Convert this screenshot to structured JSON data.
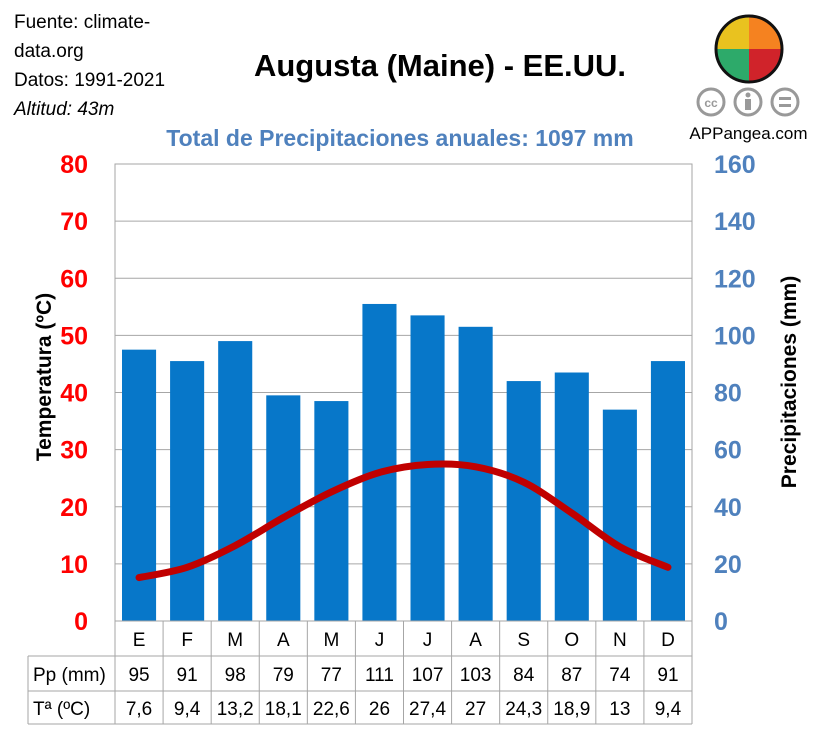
{
  "source": {
    "line1": "Fuente: climate-",
    "line2": "data.org",
    "years": "Datos: 1991-2021",
    "altitude": "Altitud: 43m"
  },
  "logo": {
    "site": "APPangea.com",
    "license_icons": [
      "cc-icon",
      "by-icon",
      "nd-icon"
    ]
  },
  "chart_data": {
    "type": "bar+line",
    "title": "Augusta (Maine) - EE.UU.",
    "subtitle": "Total de Precipitaciones anuales: 1097 mm",
    "categories": [
      "E",
      "F",
      "M",
      "A",
      "M",
      "J",
      "J",
      "A",
      "S",
      "O",
      "N",
      "D"
    ],
    "series": [
      {
        "name": "Pp (mm)",
        "type": "bar",
        "axis": "right",
        "color": "#0777C9",
        "values": [
          95,
          91,
          98,
          79,
          77,
          111,
          107,
          103,
          84,
          87,
          74,
          91
        ]
      },
      {
        "name": "Tª (ºC)",
        "type": "line",
        "axis": "left",
        "color": "#C00000",
        "values": [
          7.6,
          9.4,
          13.2,
          18.1,
          22.6,
          26,
          27.4,
          27,
          24.3,
          18.9,
          13,
          9.4
        ]
      }
    ],
    "table_labels": [
      "Pp (mm)",
      "Tª (ºC)"
    ],
    "table_values": {
      "pp": [
        "95",
        "91",
        "98",
        "79",
        "77",
        "111",
        "107",
        "103",
        "84",
        "87",
        "74",
        "91"
      ],
      "t": [
        "7,6",
        "9,4",
        "13,2",
        "18,1",
        "22,6",
        "26",
        "27,4",
        "27",
        "24,3",
        "18,9",
        "13",
        "9,4"
      ]
    },
    "ylabel_left": "Temperatura (ºC)",
    "ylabel_right": "Precipitaciones (mm)",
    "ylim_left": [
      0,
      80
    ],
    "ylim_right": [
      0,
      160
    ],
    "yticks_left": [
      "0",
      "10",
      "20",
      "30",
      "40",
      "50",
      "60",
      "70",
      "80"
    ],
    "yticks_right": [
      "0",
      "20",
      "40",
      "60",
      "80",
      "100",
      "120",
      "140",
      "160"
    ],
    "left_axis_color": "#FF0000",
    "right_axis_color": "#4F81BD",
    "grid": true
  }
}
